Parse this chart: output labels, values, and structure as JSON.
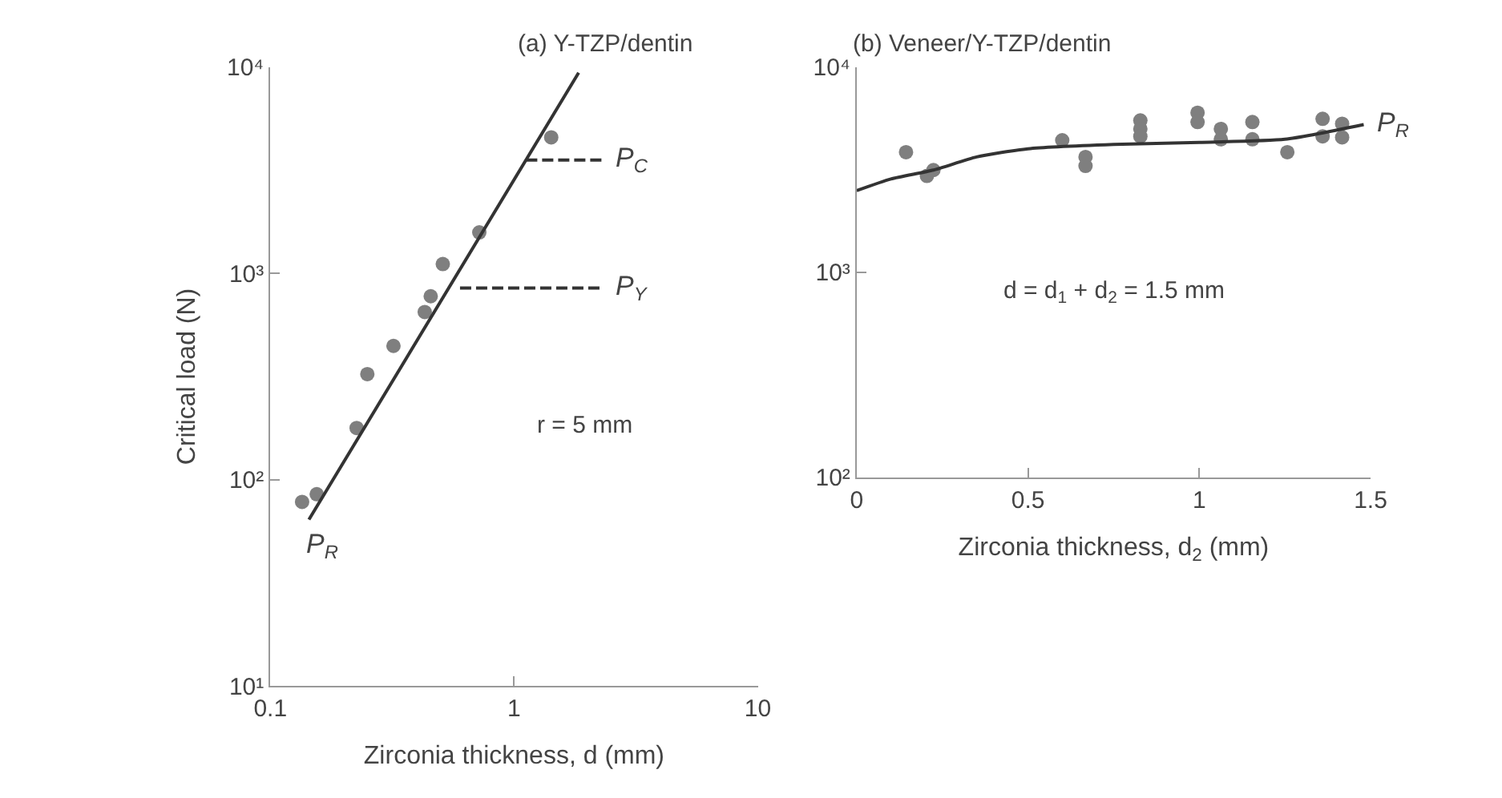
{
  "chart_data": [
    {
      "type": "scatter",
      "title": "(a) Y-TZP/dentin",
      "xlabel": "Zirconia thickness, d (mm)",
      "ylabel": "Critical load (N)",
      "log": "xy",
      "xlim": [
        0.1,
        10
      ],
      "xticks": [
        0.1,
        1,
        10
      ],
      "ylim": [
        10,
        10000
      ],
      "yticks": [
        {
          "value": 10,
          "label": "10¹"
        },
        {
          "value": 100,
          "label": "10²"
        },
        {
          "value": 1000,
          "label": "10³"
        },
        {
          "value": 10000,
          "label": "10⁴"
        }
      ],
      "series": [
        {
          "marker": "circle",
          "color": "#7f7f7f",
          "x": [
            0.135,
            0.155,
            0.226,
            0.25,
            0.32,
            0.43,
            0.455,
            0.51,
            0.72,
            1.42
          ],
          "values": [
            78,
            85,
            178,
            325,
            445,
            650,
            775,
            1110,
            1580,
            4570
          ]
        },
        {
          "type": "line",
          "marker": "none",
          "line_style": "solid",
          "color": "#333333",
          "x": [
            0.144,
            1.84
          ],
          "values": [
            64,
            9400
          ]
        },
        {
          "type": "line",
          "marker": "none",
          "line_style": "dashed",
          "color": "#333333",
          "x": [
            1.12,
            2.3
          ],
          "values": [
            3550,
            3550
          ]
        },
        {
          "type": "line",
          "marker": "none",
          "line_style": "dashed",
          "color": "#333333",
          "x": [
            0.6,
            2.3
          ],
          "values": [
            850,
            850
          ]
        }
      ],
      "annotations": [
        {
          "text": "P$_{C}$",
          "x": 2.3,
          "y": 3550
        },
        {
          "text": "P$_{Y}$",
          "x": 2.3,
          "y": 850
        },
        {
          "text": "P$_{R}$",
          "x": 0.144,
          "y": 64
        },
        "r = 5 mm"
      ]
    },
    {
      "type": "scatter",
      "title": "(b) Veneer/Y-TZP/dentin",
      "xlabel": "Zirconia thickness, d$_{2}$ (mm)",
      "log": "y",
      "xlim": [
        0,
        1.5
      ],
      "xticks": [
        0,
        0.5,
        1,
        1.5
      ],
      "ylim": [
        100,
        10000
      ],
      "yticks": [
        {
          "value": 100,
          "label": "10²"
        },
        {
          "value": 1000,
          "label": "10³"
        },
        {
          "value": 10000,
          "label": "10⁴"
        }
      ],
      "series": [
        {
          "marker": "circle",
          "color": "#7f7f7f",
          "x": [
            0.144,
            0.205,
            0.224,
            0.6,
            0.668,
            0.668,
            0.828,
            0.828,
            0.828,
            0.995,
            0.995,
            1.063,
            1.063,
            1.155,
            1.155,
            1.257,
            1.36,
            1.36,
            1.417,
            1.417
          ],
          "values": [
            3850,
            2950,
            3150,
            4400,
            3650,
            3300,
            5500,
            5000,
            4600,
            6000,
            5400,
            5000,
            4450,
            5400,
            4450,
            3850,
            5600,
            4600,
            5300,
            4550
          ]
        },
        {
          "type": "line",
          "marker": "none",
          "line_style": "solid",
          "color": "#333333",
          "x": [
            0,
            0.1,
            0.224,
            0.35,
            0.5,
            0.75,
            1.0,
            1.25,
            1.48
          ],
          "values": [
            2500,
            2850,
            3150,
            3650,
            4000,
            4200,
            4300,
            4450,
            5250
          ]
        }
      ],
      "annotations": [
        {
          "text": "P$_{R}$",
          "x": 1.48,
          "y": 5250
        },
        "d = d$_{1}$ + d$_{2}$ = 1.5 mm"
      ]
    }
  ]
}
